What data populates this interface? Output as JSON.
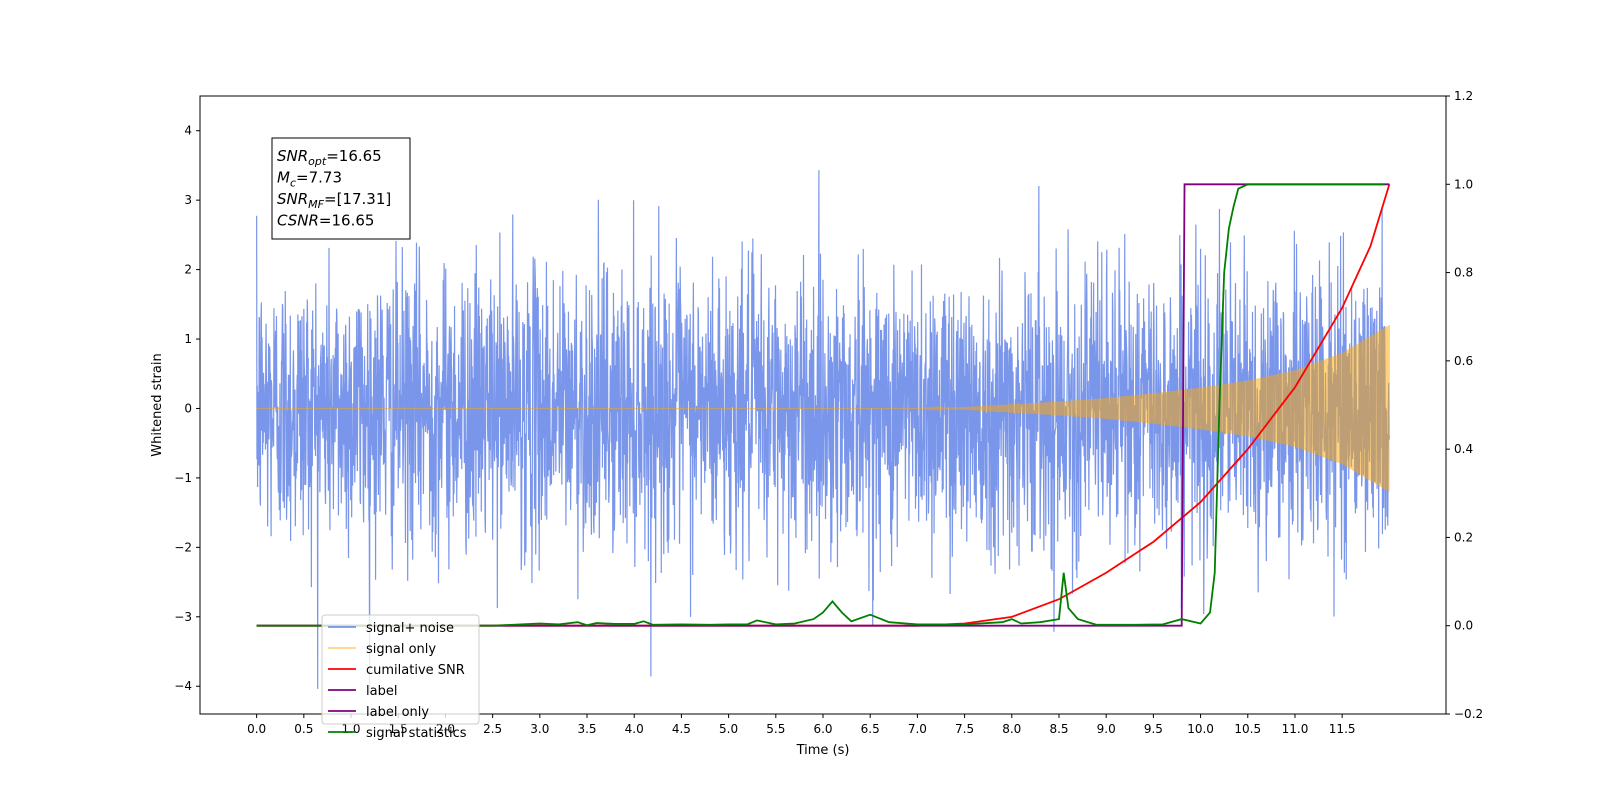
{
  "chart_data": {
    "type": "line",
    "xlabel": "Time (s)",
    "ylabel_left": "Whitened strain",
    "ylabel_right": "",
    "xlim": [
      -0.6,
      12.6
    ],
    "ylim_left": [
      -4.4,
      4.5
    ],
    "ylim_right": [
      -0.2,
      1.2
    ],
    "x_ticks": [
      "0.0",
      "0.5",
      "1.0",
      "1.5",
      "2.0",
      "2.5",
      "3.0",
      "3.5",
      "4.0",
      "4.5",
      "5.0",
      "5.5",
      "6.0",
      "6.5",
      "7.0",
      "7.5",
      "8.0",
      "8.5",
      "9.0",
      "9.5",
      "10.0",
      "10.5",
      "11.0",
      "11.5"
    ],
    "y_ticks_left": [
      "4",
      "3",
      "2",
      "1",
      "0",
      "−1",
      "−2",
      "−3",
      "−4"
    ],
    "y_ticks_right": [
      "1.2",
      "1.0",
      "0.8",
      "0.6",
      "0.4",
      "0.2",
      "0.0",
      "−0.2"
    ],
    "grid": false,
    "legend_position": "lower-left",
    "annotation": {
      "lines": [
        {
          "main": "SNR",
          "sub": "opt",
          "value": "=16.65"
        },
        {
          "main": "M",
          "sub": "c",
          "value": "=7.73"
        },
        {
          "main": "SNR",
          "sub": "MF",
          "value": "=[17.31]"
        },
        {
          "main": "CSNR",
          "sub": "",
          "value": "=16.65"
        }
      ]
    },
    "series": [
      {
        "name": "signal+ noise",
        "axis": "left",
        "color": "#4169e1",
        "opacity": 0.7,
        "x_range": [
          0.0,
          12.0
        ],
        "envelope_sigma": 1.0,
        "peak_abs": 4.1
      },
      {
        "name": "signal only",
        "axis": "left",
        "color": "#ffa500",
        "opacity": 0.5,
        "x": [
          0.0,
          7.0,
          7.5,
          8.0,
          8.5,
          9.0,
          9.5,
          10.0,
          10.5,
          11.0,
          11.5,
          12.0
        ],
        "amplitude": [
          0.0,
          0.0,
          0.02,
          0.06,
          0.1,
          0.15,
          0.22,
          0.3,
          0.4,
          0.55,
          0.8,
          1.2
        ]
      },
      {
        "name": "cumilative SNR",
        "axis": "right",
        "color": "#ff0000",
        "x": [
          0.0,
          7.0,
          7.5,
          8.0,
          8.5,
          9.0,
          9.5,
          10.0,
          10.5,
          11.0,
          11.5,
          11.8,
          12.0
        ],
        "y": [
          0.0,
          0.0,
          0.005,
          0.02,
          0.06,
          0.12,
          0.19,
          0.28,
          0.4,
          0.54,
          0.72,
          0.86,
          1.0
        ]
      },
      {
        "name": "label",
        "axis": "right",
        "color": "#800080",
        "x": [
          0.0,
          9.8,
          9.83,
          12.0
        ],
        "y": [
          0.0,
          0.0,
          1.0,
          1.0
        ]
      },
      {
        "name": "label only",
        "axis": "right",
        "color": "#800080",
        "legend_only": true
      },
      {
        "name": "signal statistics",
        "axis": "right",
        "color": "#008000",
        "x": [
          0.0,
          2.5,
          2.8,
          3.0,
          3.2,
          3.4,
          3.5,
          3.6,
          3.8,
          4.0,
          4.1,
          4.2,
          4.5,
          4.8,
          5.0,
          5.2,
          5.3,
          5.5,
          5.7,
          5.9,
          6.0,
          6.1,
          6.2,
          6.3,
          6.5,
          6.7,
          7.0,
          7.5,
          7.9,
          8.0,
          8.1,
          8.3,
          8.5,
          8.55,
          8.6,
          8.7,
          8.9,
          9.0,
          9.3,
          9.6,
          9.8,
          10.0,
          10.1,
          10.15,
          10.2,
          10.25,
          10.3,
          10.35,
          10.4,
          10.5,
          10.6,
          11.0,
          11.5,
          11.95
        ],
        "y": [
          0.0,
          0.0,
          0.003,
          0.005,
          0.003,
          0.008,
          0.001,
          0.006,
          0.004,
          0.004,
          0.01,
          0.002,
          0.003,
          0.002,
          0.003,
          0.003,
          0.012,
          0.003,
          0.005,
          0.015,
          0.03,
          0.055,
          0.03,
          0.01,
          0.025,
          0.008,
          0.003,
          0.003,
          0.008,
          0.015,
          0.005,
          0.008,
          0.015,
          0.12,
          0.04,
          0.015,
          0.002,
          0.002,
          0.002,
          0.003,
          0.015,
          0.005,
          0.03,
          0.12,
          0.5,
          0.8,
          0.9,
          0.95,
          0.99,
          1.0,
          1.0,
          1.0,
          1.0,
          1.0
        ]
      }
    ]
  }
}
